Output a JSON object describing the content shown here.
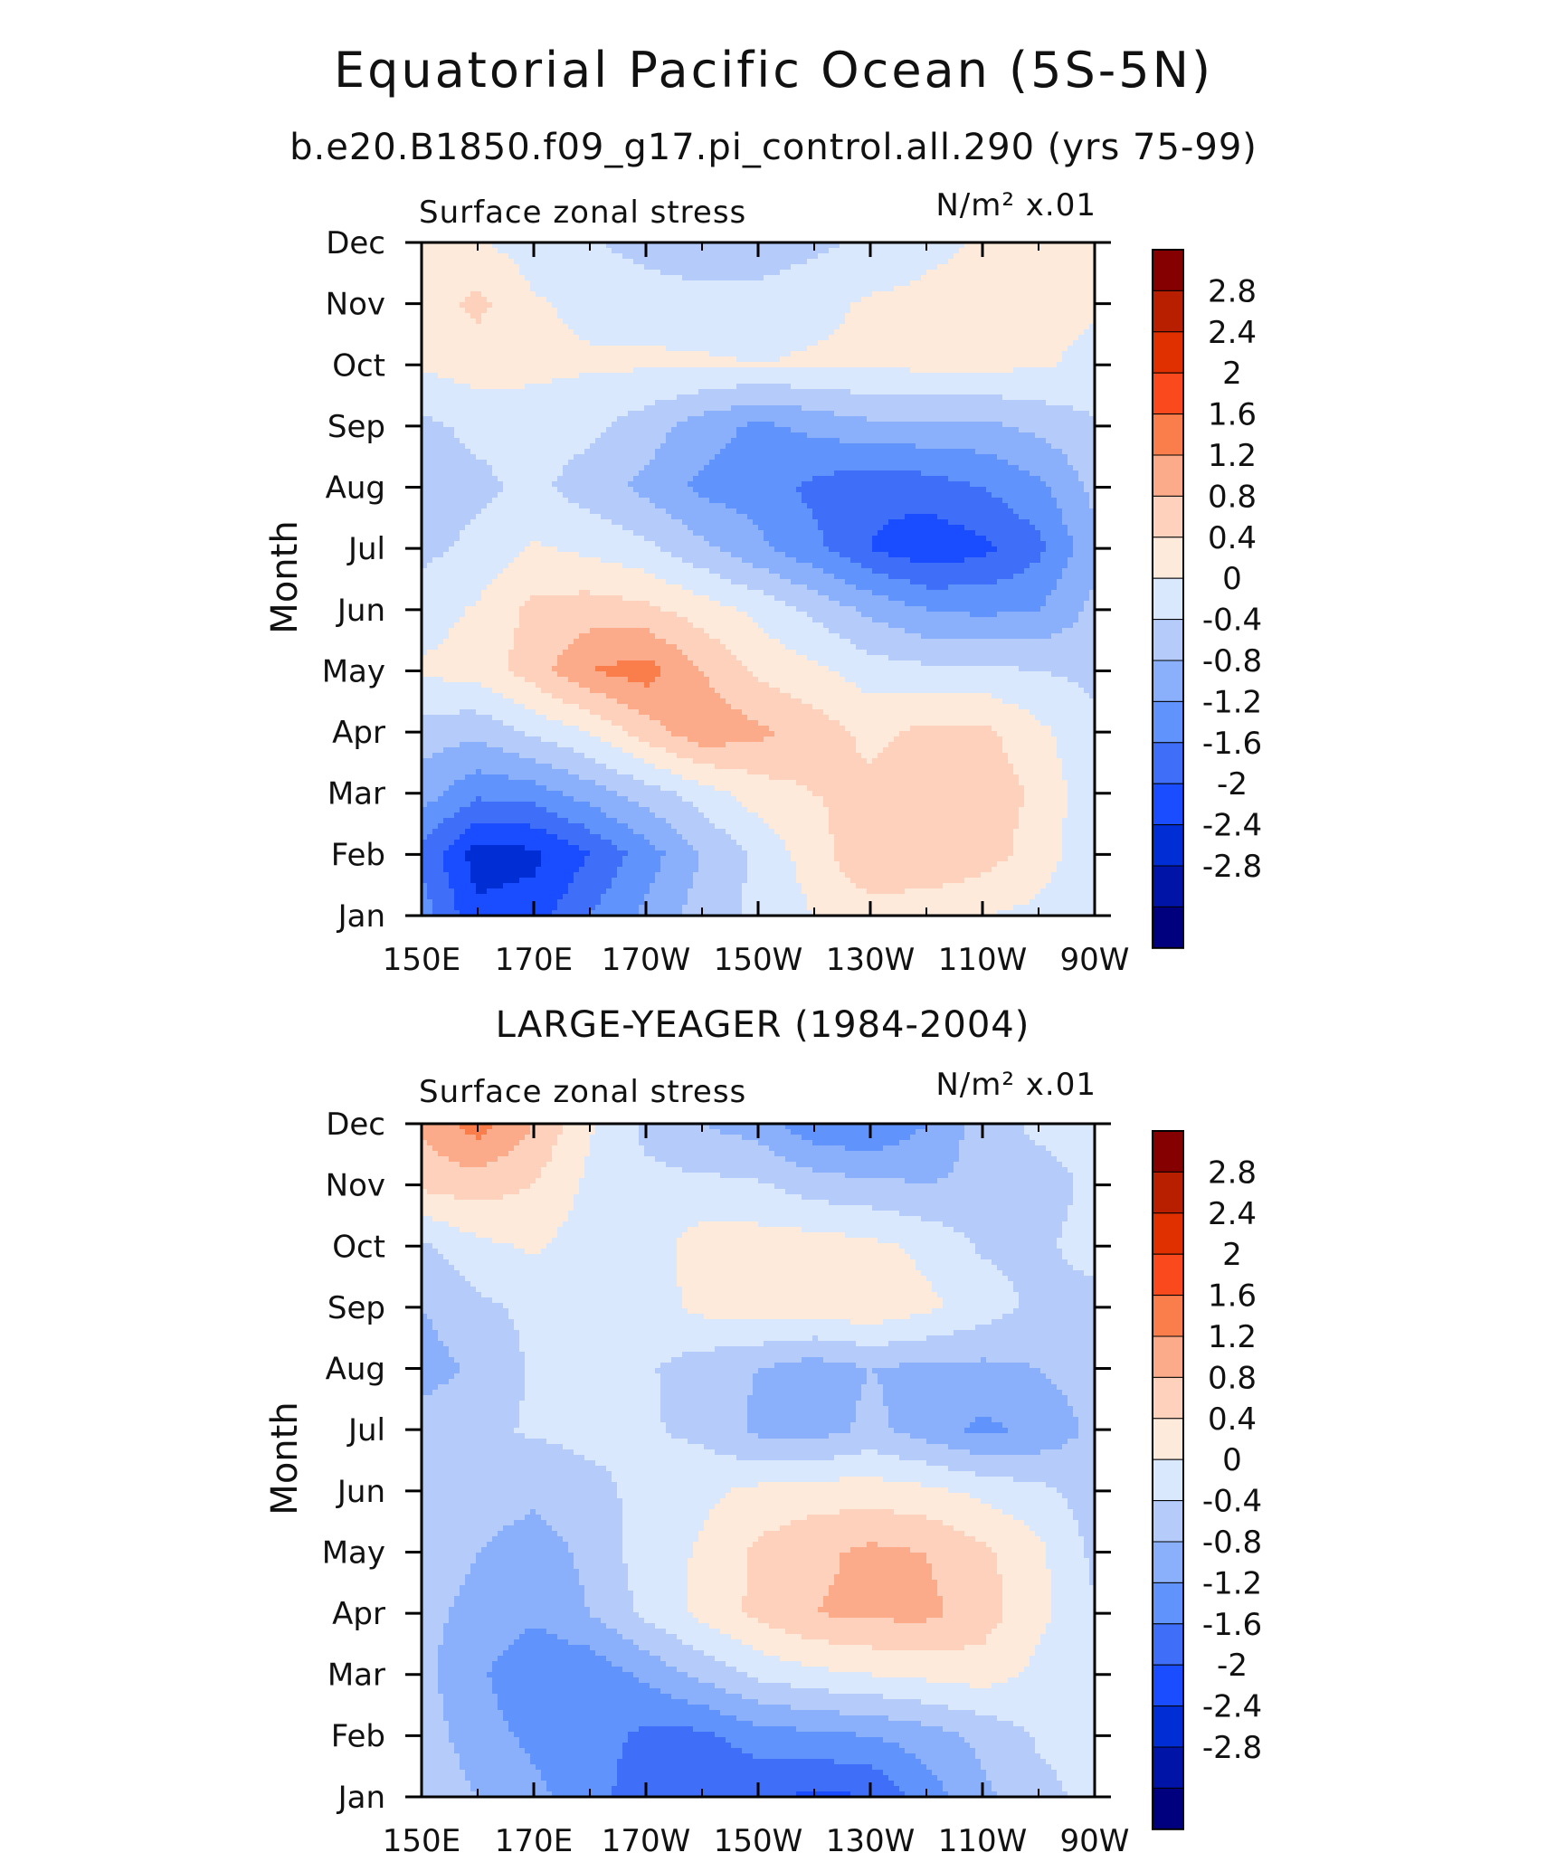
{
  "title": "Equatorial Pacific Ocean (5S-5N)",
  "colorbar_colors": [
    "#00007f",
    "#0015a8",
    "#002ed5",
    "#1a4dff",
    "#3f6ff8",
    "#6093fb",
    "#8ab0fb",
    "#b5ccfb",
    "#dae8fd",
    "#fdeadb",
    "#fdd1bb",
    "#fbab89",
    "#fa7e4c",
    "#fa4a1d",
    "#e03000",
    "#b81e00",
    "#850000"
  ],
  "chart_data": [
    {
      "type": "heatmap",
      "subtitle": "b.e20.B1850.f09_g17.pi_control.all.290 (yrs 75-99)",
      "left_label": "Surface zonal stress",
      "right_label": "N/m² x.01",
      "xlabel": "",
      "ylabel": "Month",
      "x_ticks": [
        "150E",
        "170E",
        "170W",
        "150W",
        "130W",
        "110W",
        "90W"
      ],
      "x_values": [
        150,
        160,
        170,
        180,
        190,
        200,
        210,
        220,
        230,
        240,
        250,
        260,
        270
      ],
      "y_ticks": [
        "Jan",
        "Feb",
        "Mar",
        "Apr",
        "May",
        "Jun",
        "Jul",
        "Aug",
        "Sep",
        "Oct",
        "Nov",
        "Dec"
      ],
      "colorbar_labels": [
        "2.8",
        "2.4",
        "2",
        "1.6",
        "1.2",
        "0.8",
        "0.4",
        "0",
        "-0.4",
        "-0.8",
        "-1.2",
        "-1.6",
        "-2",
        "-2.4",
        "-2.8"
      ],
      "levels": [
        -3.2,
        -2.8,
        -2.4,
        -2.0,
        -1.6,
        -1.2,
        -0.8,
        -0.4,
        0,
        0.4,
        0.8,
        1.2,
        1.6,
        2.0,
        2.4,
        2.8,
        3.2
      ],
      "values": [
        [
          -1.0,
          -1.9,
          -1.8,
          -1.2,
          -0.7,
          -0.2,
          0.1,
          0.4,
          0.6,
          0.5,
          0.4,
          0.3,
          0.05
        ],
        [
          -1.3,
          -2.2,
          -2.1,
          -1.6,
          -1.0,
          -0.4,
          0.1,
          0.6,
          1.2,
          1.2,
          1.0,
          0.6,
          0.1
        ],
        [
          -0.6,
          -1.1,
          -1.0,
          -0.6,
          -0.2,
          0.2,
          0.6,
          0.8,
          0.9,
          1.1,
          1.1,
          0.7,
          0.1
        ],
        [
          -0.2,
          -0.3,
          0.1,
          0.4,
          1.0,
          1.5,
          1.3,
          1.0,
          0.7,
          0.9,
          0.9,
          0.5,
          0.1
        ],
        [
          0.45,
          0.6,
          1.0,
          1.6,
          1.8,
          1.2,
          0.7,
          0.5,
          0.2,
          0.1,
          0.1,
          0.0,
          -0.1
        ],
        [
          0.2,
          0.45,
          0.9,
          1.0,
          0.9,
          0.6,
          0.3,
          -0.1,
          -0.5,
          -0.8,
          -0.9,
          -0.8,
          -0.3
        ],
        [
          -0.1,
          0.1,
          0.45,
          0.3,
          0.1,
          -0.3,
          -0.7,
          -1.1,
          -1.6,
          -1.9,
          -1.7,
          -1.3,
          -0.5
        ],
        [
          -0.2,
          -0.1,
          0.1,
          -0.2,
          -0.5,
          -0.9,
          -1.0,
          -1.3,
          -1.5,
          -1.4,
          -1.2,
          -0.9,
          -0.3
        ],
        [
          -0.1,
          0.1,
          0.2,
          0.1,
          -0.2,
          -0.6,
          -0.9,
          -0.7,
          -0.5,
          -0.5,
          -0.5,
          -0.3,
          -0.05
        ],
        [
          0.45,
          0.6,
          0.5,
          0.45,
          0.45,
          0.45,
          0.4,
          0.45,
          0.45,
          0.5,
          0.5,
          0.45,
          0.3
        ],
        [
          0.6,
          0.9,
          0.45,
          0.3,
          0.3,
          0.2,
          0.2,
          0.3,
          0.45,
          0.5,
          0.5,
          0.5,
          0.45
        ],
        [
          0.5,
          0.45,
          0.2,
          0.05,
          -0.2,
          -0.4,
          -0.3,
          -0.1,
          0.1,
          0.3,
          0.45,
          0.5,
          0.5
        ]
      ]
    },
    {
      "type": "heatmap",
      "subtitle": "LARGE-YEAGER (1984-2004)",
      "left_label": "Surface zonal stress",
      "right_label": "N/m² x.01",
      "xlabel": "",
      "ylabel": "Month",
      "x_ticks": [
        "150E",
        "170E",
        "170W",
        "150W",
        "130W",
        "110W",
        "90W"
      ],
      "x_values": [
        150,
        160,
        170,
        180,
        190,
        200,
        210,
        220,
        230,
        240,
        250,
        260,
        270
      ],
      "y_ticks": [
        "Jan",
        "Feb",
        "Mar",
        "Apr",
        "May",
        "Jun",
        "Jul",
        "Aug",
        "Sep",
        "Oct",
        "Nov",
        "Dec"
      ],
      "colorbar_labels": [
        "2.8",
        "2.4",
        "2",
        "1.6",
        "1.2",
        "0.8",
        "0.4",
        "0",
        "-0.4",
        "-0.8",
        "-1.2",
        "-1.6",
        "-2",
        "-2.4",
        "-2.8"
      ],
      "levels": [
        -3.2,
        -2.8,
        -2.4,
        -2.0,
        -1.6,
        -1.2,
        -0.8,
        -0.4,
        0,
        0.4,
        0.8,
        1.2,
        1.6,
        2.0,
        2.4,
        2.8,
        3.2
      ],
      "values": [
        [
          -0.1,
          -0.4,
          -0.7,
          -1.0,
          -1.5,
          -1.6,
          -1.5,
          -1.7,
          -1.6,
          -1.0,
          -0.5,
          -0.1,
          0.1
        ],
        [
          -0.2,
          -0.6,
          -0.9,
          -1.0,
          -1.3,
          -1.3,
          -1.0,
          -0.9,
          -0.8,
          -0.6,
          -0.3,
          0.05,
          0.1
        ],
        [
          -0.3,
          -0.7,
          -1.2,
          -1.1,
          -0.7,
          -0.3,
          0.1,
          0.3,
          0.4,
          0.5,
          0.6,
          0.3,
          0.1
        ],
        [
          -0.3,
          -0.5,
          -0.7,
          -0.4,
          0.1,
          0.5,
          0.9,
          1.2,
          1.3,
          1.3,
          1.0,
          0.5,
          0.05
        ],
        [
          -0.2,
          -0.4,
          -0.6,
          -0.3,
          0.2,
          0.45,
          0.9,
          1.1,
          1.3,
          1.2,
          0.9,
          0.5,
          -0.1
        ],
        [
          -0.1,
          -0.2,
          -0.3,
          -0.1,
          0.1,
          0.3,
          0.5,
          0.6,
          0.6,
          0.5,
          0.3,
          0.1,
          -0.2
        ],
        [
          -0.2,
          -0.1,
          0.05,
          0.1,
          0.05,
          -0.1,
          -0.5,
          -0.6,
          -0.3,
          -0.6,
          -0.9,
          -0.7,
          -0.3
        ],
        [
          -0.6,
          -0.3,
          0.05,
          0.1,
          0.05,
          -0.2,
          -0.4,
          -0.6,
          -0.4,
          -0.5,
          -0.5,
          -0.4,
          -0.2
        ],
        [
          -0.4,
          -0.1,
          0.1,
          0.2,
          0.2,
          0.5,
          0.6,
          0.6,
          0.7,
          0.5,
          0.2,
          -0.1,
          -0.2
        ],
        [
          -0.1,
          0.3,
          0.45,
          0.2,
          0.2,
          0.6,
          0.6,
          0.6,
          0.5,
          0.3,
          -0.05,
          -0.1,
          0.2
        ],
        [
          0.9,
          1.0,
          0.8,
          0.3,
          0.1,
          0.1,
          0.05,
          -0.2,
          -0.3,
          -0.4,
          -0.3,
          -0.2,
          0.1
        ],
        [
          1.3,
          1.8,
          1.2,
          0.45,
          -0.1,
          -0.4,
          -0.6,
          -1.1,
          -1.2,
          -0.8,
          -0.2,
          0.1,
          0.2
        ]
      ]
    }
  ]
}
